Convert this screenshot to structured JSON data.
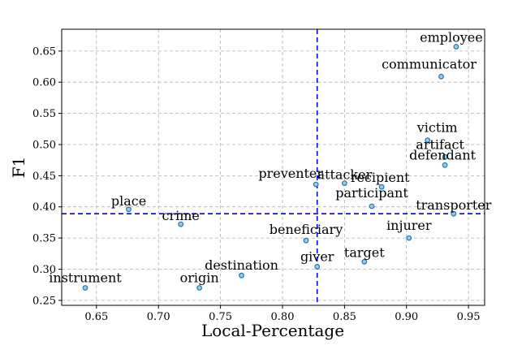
{
  "chart_data": {
    "type": "scatter",
    "xlabel": "Local-Percentage",
    "ylabel": "F1",
    "xlim": [
      0.622,
      0.963
    ],
    "ylim": [
      0.242,
      0.685
    ],
    "xticks": [
      0.65,
      0.7,
      0.75,
      0.8,
      0.85,
      0.9,
      0.95
    ],
    "xtick_labels": [
      "0.65",
      "0.70",
      "0.75",
      "0.80",
      "0.85",
      "0.90",
      "0.95"
    ],
    "yticks": [
      0.25,
      0.3,
      0.35,
      0.4,
      0.45,
      0.5,
      0.55,
      0.6,
      0.65
    ],
    "ytick_labels": [
      "0.25",
      "0.30",
      "0.35",
      "0.40",
      "0.45",
      "0.50",
      "0.55",
      "0.60",
      "0.65"
    ],
    "grid": true,
    "reference_lines": {
      "x": 0.828,
      "y": 0.389,
      "color": "#0000ee",
      "style": "dashed"
    },
    "marker_color": "#1f77b4",
    "points": [
      {
        "label": "employee",
        "x": 0.94,
        "y": 0.657
      },
      {
        "label": "communicator",
        "x": 0.928,
        "y": 0.609
      },
      {
        "label": "victim",
        "x": 0.917,
        "y": 0.507
      },
      {
        "label": "artifact",
        "x": 0.931,
        "y": 0.48
      },
      {
        "label": "defendant",
        "x": 0.931,
        "y": 0.467
      },
      {
        "label": "recipient",
        "x": 0.88,
        "y": 0.432
      },
      {
        "label": "attacker",
        "x": 0.85,
        "y": 0.438
      },
      {
        "label": "preventer",
        "x": 0.827,
        "y": 0.436
      },
      {
        "label": "participant",
        "x": 0.872,
        "y": 0.401
      },
      {
        "label": "transporter",
        "x": 0.938,
        "y": 0.389
      },
      {
        "label": "place",
        "x": 0.676,
        "y": 0.396
      },
      {
        "label": "crime",
        "x": 0.718,
        "y": 0.372
      },
      {
        "label": "beneficiary",
        "x": 0.819,
        "y": 0.346
      },
      {
        "label": "injurer",
        "x": 0.902,
        "y": 0.35
      },
      {
        "label": "target",
        "x": 0.866,
        "y": 0.312
      },
      {
        "label": "giver",
        "x": 0.828,
        "y": 0.304
      },
      {
        "label": "destination",
        "x": 0.767,
        "y": 0.29
      },
      {
        "label": "origin",
        "x": 0.733,
        "y": 0.27
      },
      {
        "label": "instrument",
        "x": 0.641,
        "y": 0.27
      }
    ]
  }
}
